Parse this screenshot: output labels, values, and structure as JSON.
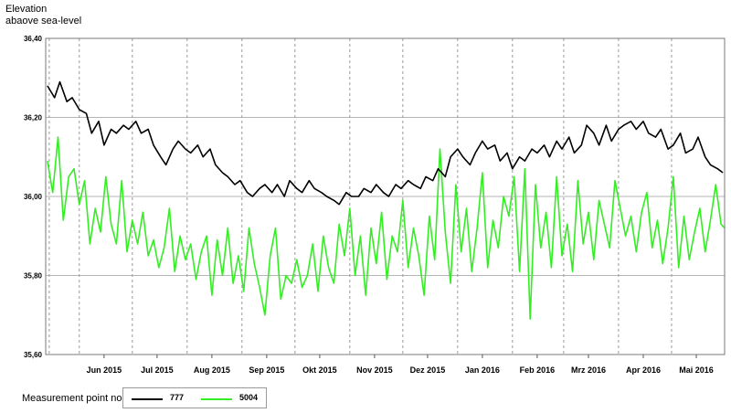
{
  "chart_data": {
    "type": "line",
    "ylabel": [
      "Elevation",
      "abaove sea-level"
    ],
    "ylim": [
      35.6,
      36.4
    ],
    "yticks": [
      "36,40",
      "36,20",
      "36,00",
      "35,80",
      "35,60"
    ],
    "ytick_values": [
      36.4,
      36.2,
      36.0,
      35.8,
      35.6
    ],
    "xlim": [
      "2015-05-13",
      "2016-05-31"
    ],
    "xticks": [
      "Jun 2015",
      "Jul 2015",
      "Aug 2015",
      "Sep 2015",
      "Okt 2015",
      "Nov 2015",
      "Dez 2015",
      "Jan 2016",
      "Feb 2016",
      "Mrz 2016",
      "Apr 2016",
      "Mai 2016"
    ],
    "xtick_dates": [
      "2015-06-15",
      "2015-07-15",
      "2015-08-15",
      "2015-09-15",
      "2015-10-15",
      "2015-11-15",
      "2015-12-15",
      "2016-01-15",
      "2016-02-15",
      "2016-03-15",
      "2016-04-15",
      "2016-05-15"
    ],
    "month_starts": [
      "2015-06-01",
      "2015-07-01",
      "2015-08-01",
      "2015-09-01",
      "2015-10-01",
      "2015-11-01",
      "2015-12-01",
      "2016-01-01",
      "2016-02-01",
      "2016-03-01",
      "2016-04-01",
      "2016-05-01"
    ],
    "legend_title": "Measurement point no.",
    "grid": true,
    "series": [
      {
        "name": "777",
        "color": "#000000",
        "x": [
          "2015-05-14",
          "2015-05-18",
          "2015-05-21",
          "2015-05-25",
          "2015-05-28",
          "2015-06-01",
          "2015-06-05",
          "2015-06-08",
          "2015-06-12",
          "2015-06-15",
          "2015-06-19",
          "2015-06-22",
          "2015-06-26",
          "2015-06-29",
          "2015-07-03",
          "2015-07-06",
          "2015-07-10",
          "2015-07-13",
          "2015-07-17",
          "2015-07-20",
          "2015-07-24",
          "2015-07-27",
          "2015-07-31",
          "2015-08-03",
          "2015-08-07",
          "2015-08-10",
          "2015-08-14",
          "2015-08-17",
          "2015-08-21",
          "2015-08-24",
          "2015-08-28",
          "2015-08-31",
          "2015-09-04",
          "2015-09-07",
          "2015-09-11",
          "2015-09-14",
          "2015-09-18",
          "2015-09-21",
          "2015-09-25",
          "2015-09-28",
          "2015-10-02",
          "2015-10-05",
          "2015-10-09",
          "2015-10-12",
          "2015-10-16",
          "2015-10-19",
          "2015-10-23",
          "2015-10-26",
          "2015-10-30",
          "2015-11-02",
          "2015-11-06",
          "2015-11-09",
          "2015-11-13",
          "2015-11-16",
          "2015-11-20",
          "2015-11-23",
          "2015-11-27",
          "2015-11-30",
          "2015-12-04",
          "2015-12-07",
          "2015-12-11",
          "2015-12-14",
          "2015-12-18",
          "2015-12-21",
          "2015-12-25",
          "2015-12-28",
          "2016-01-01",
          "2016-01-04",
          "2016-01-08",
          "2016-01-11",
          "2016-01-15",
          "2016-01-18",
          "2016-01-22",
          "2016-01-25",
          "2016-01-29",
          "2016-02-01",
          "2016-02-05",
          "2016-02-08",
          "2016-02-12",
          "2016-02-15",
          "2016-02-19",
          "2016-02-22",
          "2016-02-26",
          "2016-02-29",
          "2016-03-04",
          "2016-03-07",
          "2016-03-11",
          "2016-03-14",
          "2016-03-18",
          "2016-03-21",
          "2016-03-25",
          "2016-03-28",
          "2016-04-01",
          "2016-04-04",
          "2016-04-08",
          "2016-04-11",
          "2016-04-15",
          "2016-04-18",
          "2016-04-22",
          "2016-04-25",
          "2016-04-29",
          "2016-05-02",
          "2016-05-06",
          "2016-05-09",
          "2016-05-13",
          "2016-05-16",
          "2016-05-20",
          "2016-05-23",
          "2016-05-27",
          "2016-05-30"
        ],
        "values": [
          36.28,
          36.25,
          36.29,
          36.24,
          36.25,
          36.22,
          36.21,
          36.16,
          36.19,
          36.13,
          36.17,
          36.16,
          36.18,
          36.17,
          36.19,
          36.16,
          36.17,
          36.13,
          36.1,
          36.08,
          36.12,
          36.14,
          36.12,
          36.11,
          36.13,
          36.1,
          36.12,
          36.08,
          36.06,
          36.05,
          36.03,
          36.04,
          36.01,
          36.0,
          36.02,
          36.03,
          36.01,
          36.03,
          36.0,
          36.04,
          36.02,
          36.01,
          36.04,
          36.02,
          36.01,
          36.0,
          35.99,
          35.98,
          36.01,
          36.0,
          36.0,
          36.02,
          36.01,
          36.03,
          36.01,
          36.0,
          36.03,
          36.02,
          36.04,
          36.03,
          36.02,
          36.05,
          36.04,
          36.07,
          36.05,
          36.1,
          36.12,
          36.1,
          36.08,
          36.11,
          36.14,
          36.12,
          36.13,
          36.09,
          36.11,
          36.07,
          36.1,
          36.09,
          36.12,
          36.11,
          36.13,
          36.1,
          36.14,
          36.12,
          36.15,
          36.11,
          36.13,
          36.18,
          36.16,
          36.13,
          36.18,
          36.14,
          36.17,
          36.18,
          36.19,
          36.17,
          36.19,
          36.16,
          36.15,
          36.17,
          36.12,
          36.13,
          36.16,
          36.11,
          36.12,
          36.15,
          36.1,
          36.08,
          36.07,
          36.06
        ]
      },
      {
        "name": "5004",
        "color": "#33ee22",
        "x": [
          "2015-05-14",
          "2015-05-17",
          "2015-05-20",
          "2015-05-23",
          "2015-05-26",
          "2015-05-29",
          "2015-06-01",
          "2015-06-04",
          "2015-06-07",
          "2015-06-10",
          "2015-06-13",
          "2015-06-16",
          "2015-06-19",
          "2015-06-22",
          "2015-06-25",
          "2015-06-28",
          "2015-07-01",
          "2015-07-04",
          "2015-07-07",
          "2015-07-10",
          "2015-07-13",
          "2015-07-16",
          "2015-07-19",
          "2015-07-22",
          "2015-07-25",
          "2015-07-28",
          "2015-07-31",
          "2015-08-03",
          "2015-08-06",
          "2015-08-09",
          "2015-08-12",
          "2015-08-15",
          "2015-08-18",
          "2015-08-21",
          "2015-08-24",
          "2015-08-27",
          "2015-08-30",
          "2015-09-02",
          "2015-09-05",
          "2015-09-08",
          "2015-09-11",
          "2015-09-14",
          "2015-09-17",
          "2015-09-20",
          "2015-09-23",
          "2015-09-26",
          "2015-09-29",
          "2015-10-02",
          "2015-10-05",
          "2015-10-08",
          "2015-10-11",
          "2015-10-14",
          "2015-10-17",
          "2015-10-20",
          "2015-10-23",
          "2015-10-26",
          "2015-10-29",
          "2015-11-01",
          "2015-11-04",
          "2015-11-07",
          "2015-11-10",
          "2015-11-13",
          "2015-11-16",
          "2015-11-19",
          "2015-11-22",
          "2015-11-25",
          "2015-11-28",
          "2015-12-01",
          "2015-12-04",
          "2015-12-07",
          "2015-12-10",
          "2015-12-13",
          "2015-12-16",
          "2015-12-19",
          "2015-12-22",
          "2015-12-25",
          "2015-12-28",
          "2015-12-31",
          "2016-01-03",
          "2016-01-06",
          "2016-01-09",
          "2016-01-12",
          "2016-01-15",
          "2016-01-18",
          "2016-01-21",
          "2016-01-24",
          "2016-01-27",
          "2016-01-30",
          "2016-02-02",
          "2016-02-05",
          "2016-02-08",
          "2016-02-11",
          "2016-02-14",
          "2016-02-17",
          "2016-02-20",
          "2016-02-23",
          "2016-02-26",
          "2016-02-29",
          "2016-03-03",
          "2016-03-06",
          "2016-03-09",
          "2016-03-12",
          "2016-03-15",
          "2016-03-18",
          "2016-03-21",
          "2016-03-24",
          "2016-03-27",
          "2016-03-30",
          "2016-04-02",
          "2016-04-05",
          "2016-04-08",
          "2016-04-11",
          "2016-04-14",
          "2016-04-17",
          "2016-04-20",
          "2016-04-23",
          "2016-04-26",
          "2016-04-29",
          "2016-05-02",
          "2016-05-05",
          "2016-05-08",
          "2016-05-11",
          "2016-05-14",
          "2016-05-17",
          "2016-05-20",
          "2016-05-23",
          "2016-05-26",
          "2016-05-29",
          "2016-05-31"
        ],
        "values": [
          36.09,
          36.01,
          36.15,
          35.94,
          36.05,
          36.07,
          35.98,
          36.04,
          35.88,
          35.97,
          35.91,
          36.05,
          35.93,
          35.88,
          36.04,
          35.86,
          35.94,
          35.88,
          35.96,
          35.85,
          35.89,
          35.82,
          35.87,
          35.97,
          35.81,
          35.9,
          35.84,
          35.88,
          35.79,
          35.86,
          35.9,
          35.75,
          35.89,
          35.8,
          35.92,
          35.78,
          35.85,
          35.76,
          35.92,
          35.83,
          35.77,
          35.7,
          35.85,
          35.92,
          35.74,
          35.8,
          35.78,
          35.84,
          35.77,
          35.8,
          35.88,
          35.76,
          35.9,
          35.82,
          35.78,
          35.93,
          35.85,
          35.97,
          35.8,
          35.9,
          35.75,
          35.92,
          35.83,
          35.96,
          35.79,
          35.9,
          35.86,
          35.99,
          35.82,
          35.92,
          35.85,
          35.75,
          35.95,
          35.84,
          36.12,
          35.91,
          35.78,
          36.03,
          35.86,
          35.97,
          35.81,
          35.92,
          36.06,
          35.82,
          35.94,
          35.87,
          36.0,
          35.95,
          36.05,
          35.81,
          36.07,
          35.69,
          36.03,
          35.87,
          35.96,
          35.82,
          36.05,
          35.85,
          35.93,
          35.81,
          36.04,
          35.88,
          35.96,
          35.84,
          35.99,
          35.93,
          35.87,
          36.04,
          35.97,
          35.9,
          35.95,
          35.86,
          35.96,
          36.01,
          35.87,
          35.94,
          35.83,
          35.92,
          36.05,
          35.82,
          35.95,
          35.84,
          35.91,
          35.97,
          35.86,
          35.94,
          36.03,
          35.93,
          35.92
        ]
      }
    ]
  }
}
